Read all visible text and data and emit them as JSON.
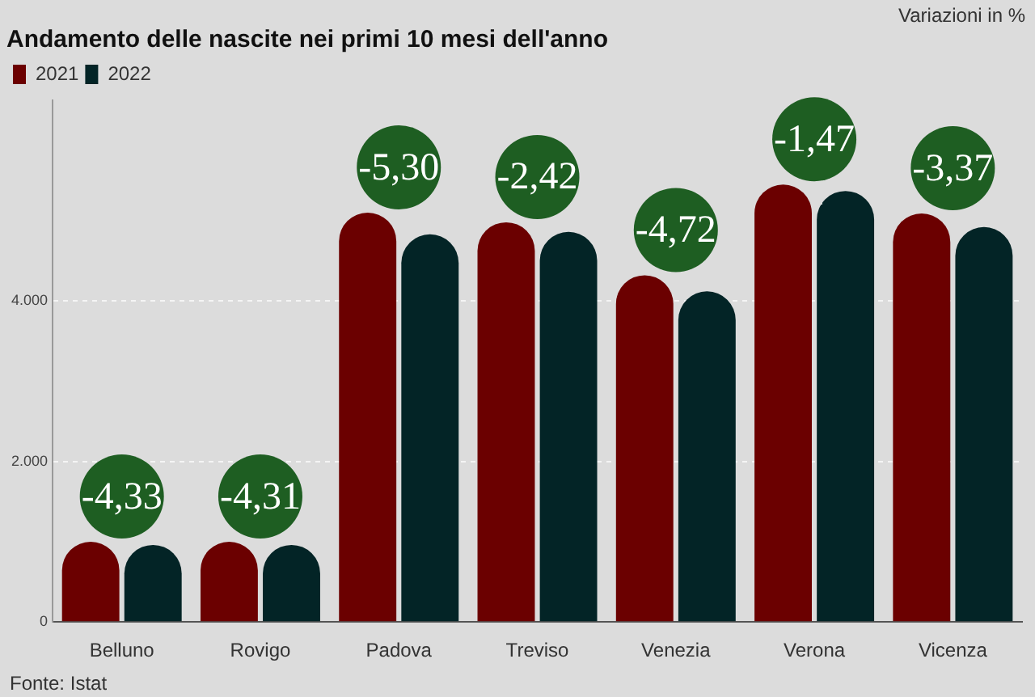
{
  "chart_data": {
    "type": "bar",
    "title": "Andamento delle nascite nei primi 10 mesi dell'anno",
    "categories": [
      "Belluno",
      "Rovigo",
      "Padova",
      "Treviso",
      "Venezia",
      "Verona",
      "Vicenza"
    ],
    "series": [
      {
        "name": "2021",
        "color": "#6b0000",
        "values": [
          1000,
          1000,
          5100,
          4980,
          4320,
          5450,
          5090
        ]
      },
      {
        "name": "2022",
        "color": "#032426",
        "values": [
          960,
          960,
          4830,
          4860,
          4120,
          5370,
          4920
        ]
      }
    ],
    "ylim": [
      0,
      6500
    ],
    "yticks": [
      0,
      {
        "value": 2000,
        "label": "2.000"
      },
      {
        "value": 4000,
        "label": "4.000"
      }
    ],
    "grid": "y",
    "legend": "top left",
    "annotations": [
      "-4,33",
      "-4,31",
      "-5,30",
      "-2,42",
      "-4,72",
      "-1,47",
      "-3,37",
      "Variazioni in %",
      "Fonte: Istat"
    ]
  }
}
